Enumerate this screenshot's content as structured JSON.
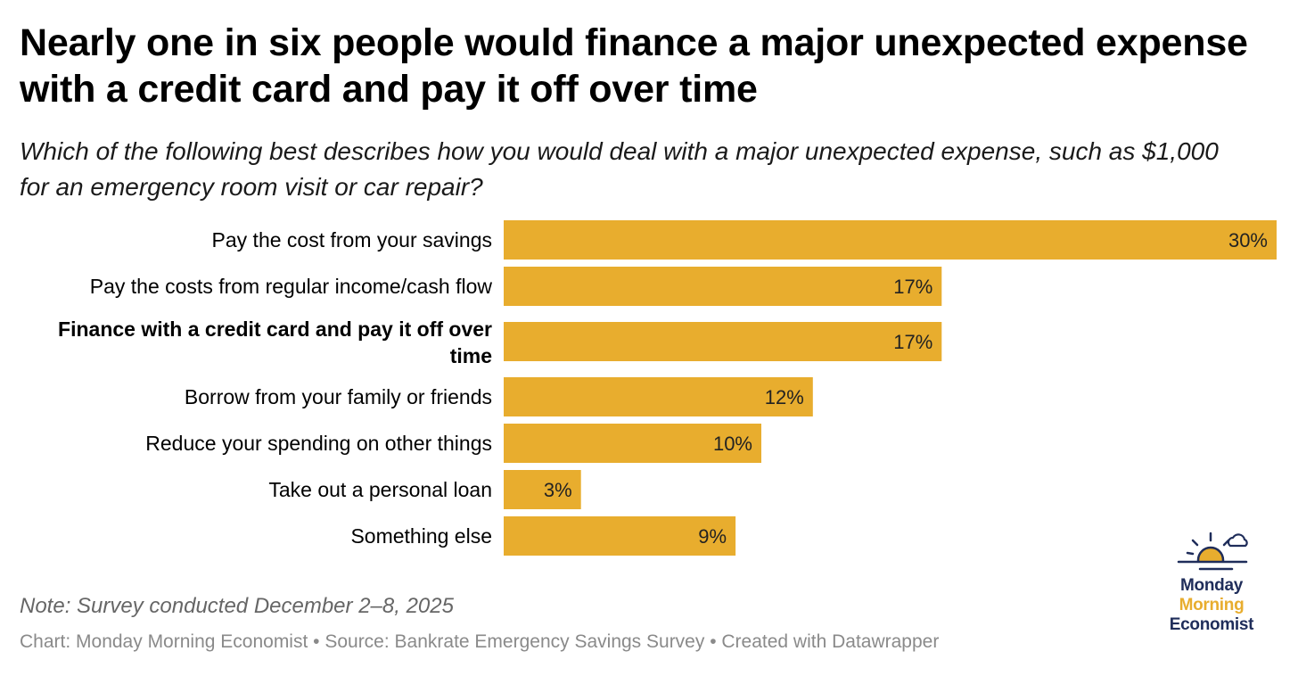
{
  "title": "Nearly one in six people would finance a major unexpected expense with a credit card and pay it off over time",
  "subtitle": "Which of the following best describes how you would deal with a major unexpected expense, such as $1,000 for an emergency room visit or car repair?",
  "note": "Note: Survey conducted December 2–8, 2025",
  "credit": "Chart: Monday Morning Economist • Source: Bankrate Emergency Savings Survey • Created with Datawrapper",
  "logo": {
    "line1": "Monday",
    "line2": "Morning",
    "line3": "Economist",
    "navy": "#1f2d5a",
    "gold": "#e8ad2e"
  },
  "colors": {
    "bar": "#e8ad2e",
    "text": "#000000"
  },
  "chart_data": {
    "type": "bar",
    "orientation": "horizontal",
    "categories": [
      "Pay the cost from your savings",
      "Pay the costs from regular income/cash flow",
      "Finance with a credit card and pay it off over time",
      "Borrow from your family or friends",
      "Reduce your spending on other things",
      "Take out a personal loan",
      "Something else"
    ],
    "values": [
      30,
      17,
      17,
      12,
      10,
      3,
      9
    ],
    "value_labels": [
      "30%",
      "17%",
      "17%",
      "12%",
      "10%",
      "3%",
      "9%"
    ],
    "highlighted_category": "Finance with a credit card and pay it off over time",
    "xlim": [
      0,
      30
    ],
    "grid": false,
    "legend": "none"
  }
}
